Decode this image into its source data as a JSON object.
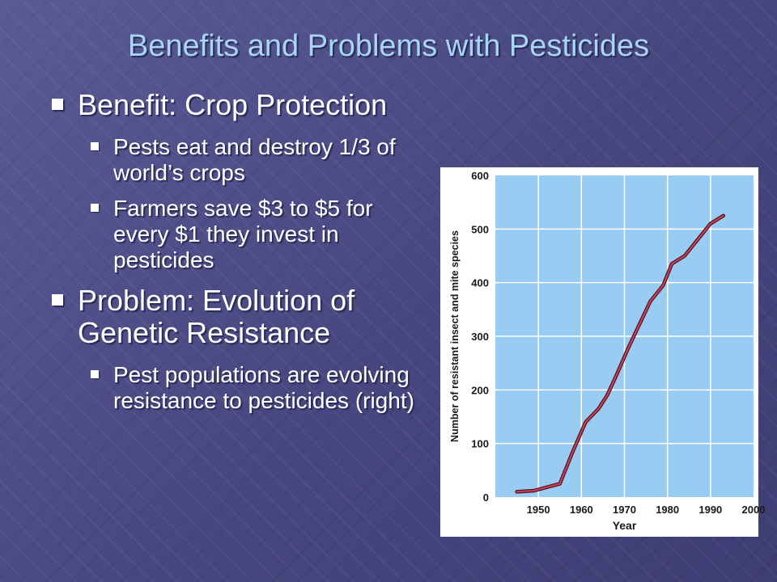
{
  "slide": {
    "title": "Benefits and Problems with Pesticides",
    "bullets": [
      {
        "text": "Benefit: Crop Protection",
        "sub": [
          "Pests eat and destroy 1/3 of world’s crops",
          "Farmers save $3 to $5 for every $1 they invest in pesticides"
        ]
      },
      {
        "text": "Problem: Evolution of Genetic Resistance",
        "sub": [
          "Pest populations are evolving resistance to pesticides (right)"
        ]
      }
    ]
  },
  "colors": {
    "title": "#a8d4f5",
    "plot_background": "#99ccf2",
    "grid": "#ffffff",
    "line": "#c0475b"
  },
  "chart_data": {
    "type": "line",
    "title": "",
    "xlabel": "Year",
    "ylabel": "Number of resistant insect and mite species",
    "xlim": [
      1940,
      2000
    ],
    "ylim": [
      0,
      600
    ],
    "xticks": [
      "1950",
      "1960",
      "1970",
      "1980",
      "1990",
      "2000"
    ],
    "yticks": [
      "0",
      "100",
      "200",
      "300",
      "400",
      "500",
      "600"
    ],
    "grid": true,
    "legend": "none",
    "series": [
      {
        "x": [
          1945,
          1949,
          1955,
          1958,
          1961,
          1964,
          1966,
          1968,
          1971,
          1976,
          1979,
          1981,
          1984,
          1990,
          1993
        ],
        "y": [
          10,
          12,
          25,
          85,
          140,
          165,
          190,
          225,
          280,
          365,
          395,
          435,
          450,
          510,
          525
        ]
      }
    ]
  }
}
